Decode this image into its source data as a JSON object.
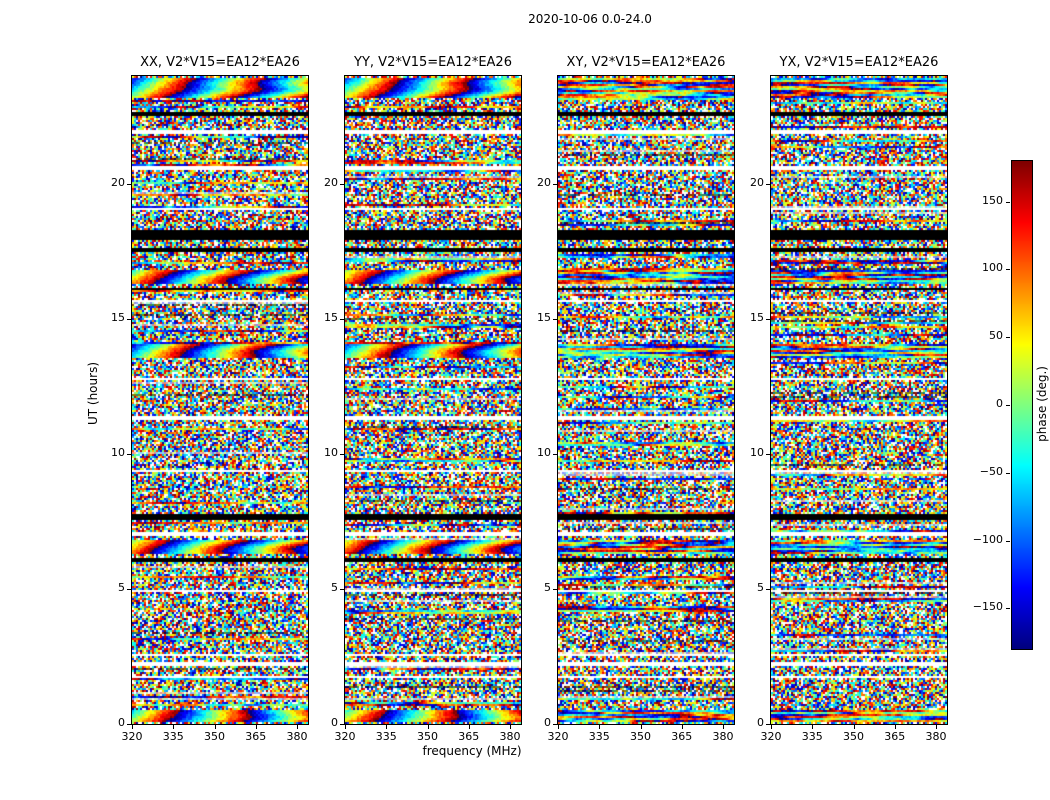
{
  "figure": {
    "suptitle": "2020-10-06 0.0-24.0",
    "xlabel": "frequency (MHz)",
    "ylabel": "UT (hours)",
    "colorbar_label": "phase (deg.)"
  },
  "chart_data": {
    "type": "heatmap",
    "title": "2020-10-06 0.0-24.0",
    "xlabel": "frequency (MHz)",
    "ylabel": "UT (hours)",
    "x_range": [
      320,
      384
    ],
    "y_range": [
      0,
      24
    ],
    "x_ticks": [
      320,
      335,
      350,
      365,
      380
    ],
    "y_ticks": [
      0,
      5,
      10,
      15,
      20
    ],
    "colormap": "jet",
    "grid": false,
    "colorbar": {
      "label": "phase (deg.)",
      "range": [
        -180,
        180
      ],
      "ticks": [
        150,
        100,
        50,
        0,
        -50,
        -100,
        -150
      ]
    },
    "panels": [
      {
        "title": "XX, V2*V15=EA12*EA26",
        "correlation": "XX",
        "baseline": "V2*V15=EA12*EA26",
        "smooth_bands": true,
        "seed": 11
      },
      {
        "title": "YY, V2*V15=EA12*EA26",
        "correlation": "YY",
        "baseline": "V2*V15=EA12*EA26",
        "smooth_bands": true,
        "seed": 22
      },
      {
        "title": "XY, V2*V15=EA12*EA26",
        "correlation": "XY",
        "baseline": "V2*V15=EA12*EA26",
        "smooth_bands": false,
        "seed": 33
      },
      {
        "title": "YX, V2*V15=EA12*EA26",
        "correlation": "YX",
        "baseline": "V2*V15=EA12*EA26",
        "smooth_bands": false,
        "seed": 44
      }
    ],
    "time_features": [
      {
        "y0": 23.15,
        "y1": 23.95,
        "kind": "smooth"
      },
      {
        "y0": 22.5,
        "y1": 22.68,
        "kind": "black"
      },
      {
        "y0": 21.88,
        "y1": 21.97,
        "kind": "white"
      },
      {
        "y0": 20.55,
        "y1": 20.66,
        "kind": "white"
      },
      {
        "y0": 19.04,
        "y1": 19.14,
        "kind": "white"
      },
      {
        "y0": 17.92,
        "y1": 18.28,
        "kind": "black"
      },
      {
        "y0": 17.5,
        "y1": 17.62,
        "kind": "black"
      },
      {
        "y0": 16.32,
        "y1": 16.78,
        "kind": "smooth"
      },
      {
        "y0": 16.05,
        "y1": 16.14,
        "kind": "black"
      },
      {
        "y0": 15.62,
        "y1": 15.72,
        "kind": "white"
      },
      {
        "y0": 13.52,
        "y1": 14.08,
        "kind": "smooth"
      },
      {
        "y0": 12.72,
        "y1": 12.82,
        "kind": "white"
      },
      {
        "y0": 11.28,
        "y1": 11.38,
        "kind": "white"
      },
      {
        "y0": 9.32,
        "y1": 9.44,
        "kind": "white"
      },
      {
        "y0": 7.55,
        "y1": 7.78,
        "kind": "black"
      },
      {
        "y0": 6.98,
        "y1": 7.08,
        "kind": "white"
      },
      {
        "y0": 6.32,
        "y1": 6.78,
        "kind": "smooth"
      },
      {
        "y0": 6.02,
        "y1": 6.12,
        "kind": "black"
      },
      {
        "y0": 4.88,
        "y1": 4.98,
        "kind": "white"
      },
      {
        "y0": 2.52,
        "y1": 2.62,
        "kind": "white"
      },
      {
        "y0": 2.18,
        "y1": 2.28,
        "kind": "white"
      },
      {
        "y0": 1.68,
        "y1": 1.78,
        "kind": "white"
      },
      {
        "y0": 0.08,
        "y1": 0.55,
        "kind": "smooth"
      }
    ],
    "content_description": "Four waterfall panels of visibility phase (deg., jet colormap) vs frequency (MHz, x) and UT (hours, y) for correlations XX, YY, XY, YX of baseline V2*V15=EA12*EA26; mostly random phase speckle with smooth phase-ramp bands, flagged white gaps and black zero rows."
  }
}
